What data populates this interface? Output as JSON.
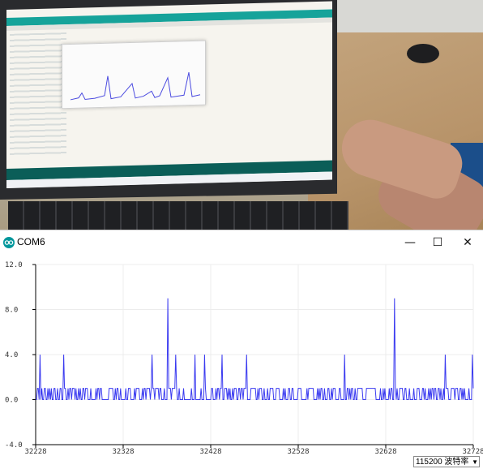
{
  "window": {
    "title": "COM6",
    "minimize_glyph": "—",
    "maximize_glyph": "☐",
    "close_glyph": "✕"
  },
  "icons": {
    "app": "arduino-logo-icon"
  },
  "colors": {
    "series": "#3a3af0",
    "arduino_teal": "#00979c"
  },
  "footer": {
    "baud_rate": "115200 波特率"
  },
  "chart_data": {
    "type": "line",
    "xlim": [
      32228,
      32728
    ],
    "ylim": [
      -4.0,
      12.0
    ],
    "x_ticks": [
      "32228",
      "32328",
      "32428",
      "32528",
      "32628",
      "32728"
    ],
    "y_ticks": [
      "12.0",
      "8.0",
      "4.0",
      "0.0",
      "-4.0"
    ],
    "grid": true,
    "series": [
      {
        "peaks": [
          {
            "x": 32233,
            "y": 4.0
          },
          {
            "x": 32260,
            "y": 4.0
          },
          {
            "x": 32297,
            "y": 1.0
          },
          {
            "x": 32361,
            "y": 4.0
          },
          {
            "x": 32367,
            "y": 1.0
          },
          {
            "x": 32379,
            "y": 9.0
          },
          {
            "x": 32388,
            "y": 4.0
          },
          {
            "x": 32410,
            "y": 4.0
          },
          {
            "x": 32421,
            "y": 4.0
          },
          {
            "x": 32441,
            "y": 4.0
          },
          {
            "x": 32469,
            "y": 4.0
          },
          {
            "x": 32581,
            "y": 4.0
          },
          {
            "x": 32638,
            "y": 9.0
          },
          {
            "x": 32696,
            "y": 4.0
          },
          {
            "x": 32727,
            "y": 4.0
          }
        ],
        "baseline": 0.0,
        "small_pulse_height": 1.0
      }
    ]
  }
}
